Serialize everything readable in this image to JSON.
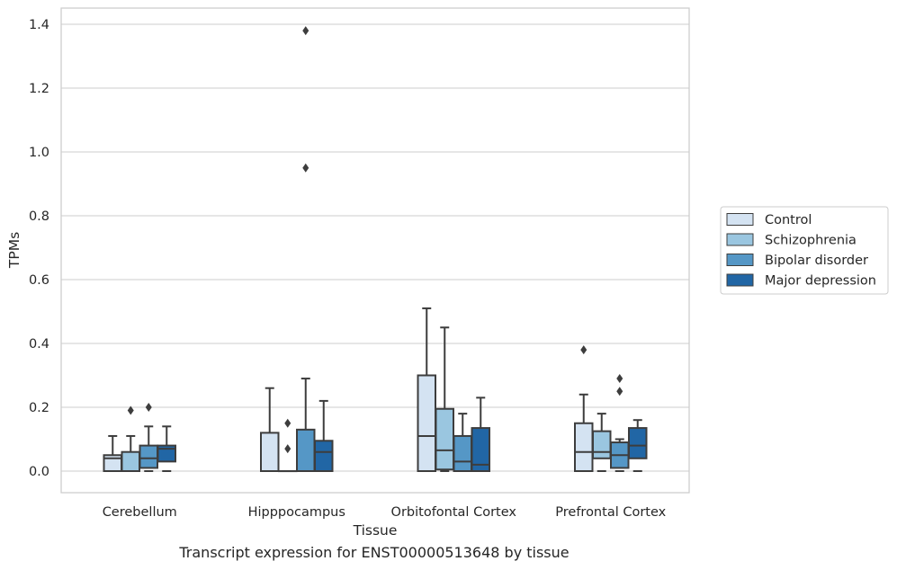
{
  "chart_data": {
    "type": "box",
    "xlabel": "Tissue",
    "ylabel": "TPMs",
    "ylim": [
      -0.065,
      1.45
    ],
    "yticks": [
      0.0,
      0.2,
      0.4,
      0.6,
      0.8,
      1.0,
      1.2,
      1.4
    ],
    "ytick_labels": [
      "0.0",
      "0.2",
      "0.4",
      "0.6",
      "0.8",
      "1.0",
      "1.2",
      "1.4"
    ],
    "grid": "horizontal",
    "legend_position": "right",
    "categories": [
      "Cerebellum",
      "Hipppocampus",
      "Orbitofontal Cortex",
      "Prefrontal Cortex"
    ],
    "series": [
      {
        "name": "Control",
        "color": "#d4e3f2",
        "boxes": [
          {
            "whislo": 0.0,
            "q1": 0.0,
            "median": 0.04,
            "q3": 0.05,
            "whishi": 0.11,
            "fliers": []
          },
          {
            "whislo": 0.0,
            "q1": 0.0,
            "median": 0.0,
            "q3": 0.12,
            "whishi": 0.26,
            "fliers": []
          },
          {
            "whislo": 0.0,
            "q1": 0.0,
            "median": 0.11,
            "q3": 0.3,
            "whishi": 0.51,
            "fliers": []
          },
          {
            "whislo": 0.0,
            "q1": 0.0,
            "median": 0.06,
            "q3": 0.15,
            "whishi": 0.24,
            "fliers": [
              0.38
            ]
          }
        ]
      },
      {
        "name": "Schizophrenia",
        "color": "#9ac6e0",
        "boxes": [
          {
            "whislo": 0.0,
            "q1": 0.0,
            "median": 0.0,
            "q3": 0.06,
            "whishi": 0.11,
            "fliers": [
              0.19
            ]
          },
          {
            "whislo": 0.0,
            "q1": 0.0,
            "median": 0.0,
            "q3": 0.0,
            "whishi": 0.0,
            "fliers": [
              0.07,
              0.15
            ]
          },
          {
            "whislo": 0.0,
            "q1": 0.005,
            "median": 0.065,
            "q3": 0.195,
            "whishi": 0.45,
            "fliers": []
          },
          {
            "whislo": 0.0,
            "q1": 0.04,
            "median": 0.06,
            "q3": 0.125,
            "whishi": 0.18,
            "fliers": []
          }
        ]
      },
      {
        "name": "Bipolar disorder",
        "color": "#5597c6",
        "boxes": [
          {
            "whislo": 0.0,
            "q1": 0.01,
            "median": 0.04,
            "q3": 0.08,
            "whishi": 0.14,
            "fliers": [
              0.2
            ]
          },
          {
            "whislo": 0.0,
            "q1": 0.0,
            "median": 0.0,
            "q3": 0.13,
            "whishi": 0.29,
            "fliers": [
              0.95,
              1.38
            ]
          },
          {
            "whislo": 0.0,
            "q1": 0.0,
            "median": 0.03,
            "q3": 0.11,
            "whishi": 0.18,
            "fliers": []
          },
          {
            "whislo": 0.0,
            "q1": 0.01,
            "median": 0.05,
            "q3": 0.09,
            "whishi": 0.1,
            "fliers": [
              0.25,
              0.29
            ]
          }
        ]
      },
      {
        "name": "Major depression",
        "color": "#2166a5",
        "boxes": [
          {
            "whislo": 0.0,
            "q1": 0.03,
            "median": 0.07,
            "q3": 0.08,
            "whishi": 0.14,
            "fliers": []
          },
          {
            "whislo": 0.0,
            "q1": 0.0,
            "median": 0.06,
            "q3": 0.095,
            "whishi": 0.22,
            "fliers": []
          },
          {
            "whislo": 0.0,
            "q1": 0.0,
            "median": 0.02,
            "q3": 0.135,
            "whishi": 0.23,
            "fliers": []
          },
          {
            "whislo": 0.0,
            "q1": 0.04,
            "median": 0.08,
            "q3": 0.135,
            "whishi": 0.16,
            "fliers": []
          }
        ]
      }
    ],
    "caption": "Transcript expression for ENST00000513648 by tissue"
  }
}
